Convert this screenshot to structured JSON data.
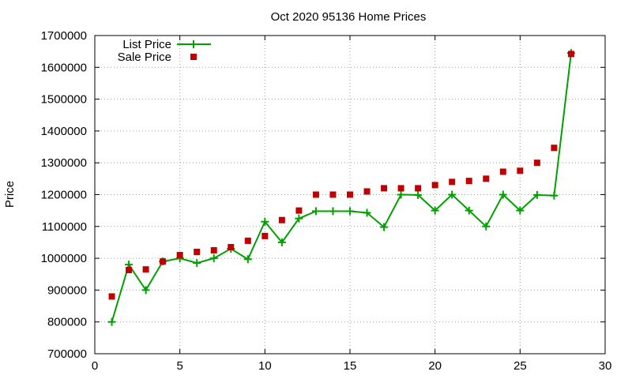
{
  "chart_data": {
    "type": "line",
    "title": "Oct 2020 95136 Home Prices",
    "xlabel": "",
    "ylabel": "Price",
    "xlim": [
      0,
      30
    ],
    "ylim": [
      700000,
      1700000
    ],
    "x_ticks": [
      0,
      5,
      10,
      15,
      20,
      25,
      30
    ],
    "y_ticks": [
      700000,
      800000,
      900000,
      1000000,
      1100000,
      1200000,
      1300000,
      1400000,
      1500000,
      1600000,
      1700000
    ],
    "grid": true,
    "legend_position": "top-left",
    "series": [
      {
        "name": "List Price",
        "style": "line-with-plus-markers",
        "color": "#00a000",
        "x": [
          1,
          2,
          3,
          4,
          5,
          6,
          7,
          8,
          9,
          10,
          11,
          12,
          13,
          14,
          15,
          16,
          17,
          18,
          19,
          20,
          21,
          22,
          23,
          24,
          25,
          26,
          27,
          28
        ],
        "values": [
          800000,
          980000,
          900000,
          990000,
          1000000,
          985000,
          1000000,
          1030000,
          997000,
          1115000,
          1050000,
          1125000,
          1148000,
          1148000,
          1148000,
          1143000,
          1098000,
          1200000,
          1199000,
          1150000,
          1200000,
          1150000,
          1100000,
          1200000,
          1150000,
          1199000,
          1197000,
          1645000
        ]
      },
      {
        "name": "Sale Price",
        "style": "square-markers",
        "color": "#c00000",
        "x": [
          1,
          2,
          3,
          4,
          5,
          6,
          7,
          8,
          9,
          10,
          11,
          12,
          13,
          14,
          15,
          16,
          17,
          18,
          19,
          20,
          21,
          22,
          23,
          24,
          25,
          26,
          27,
          28
        ],
        "values": [
          880000,
          963000,
          965000,
          990000,
          1010000,
          1020000,
          1025000,
          1035000,
          1055000,
          1070000,
          1120000,
          1150000,
          1200000,
          1200000,
          1200000,
          1210000,
          1220000,
          1220000,
          1220000,
          1230000,
          1240000,
          1243000,
          1250000,
          1272000,
          1275000,
          1300000,
          1347000,
          1642000
        ]
      }
    ]
  }
}
